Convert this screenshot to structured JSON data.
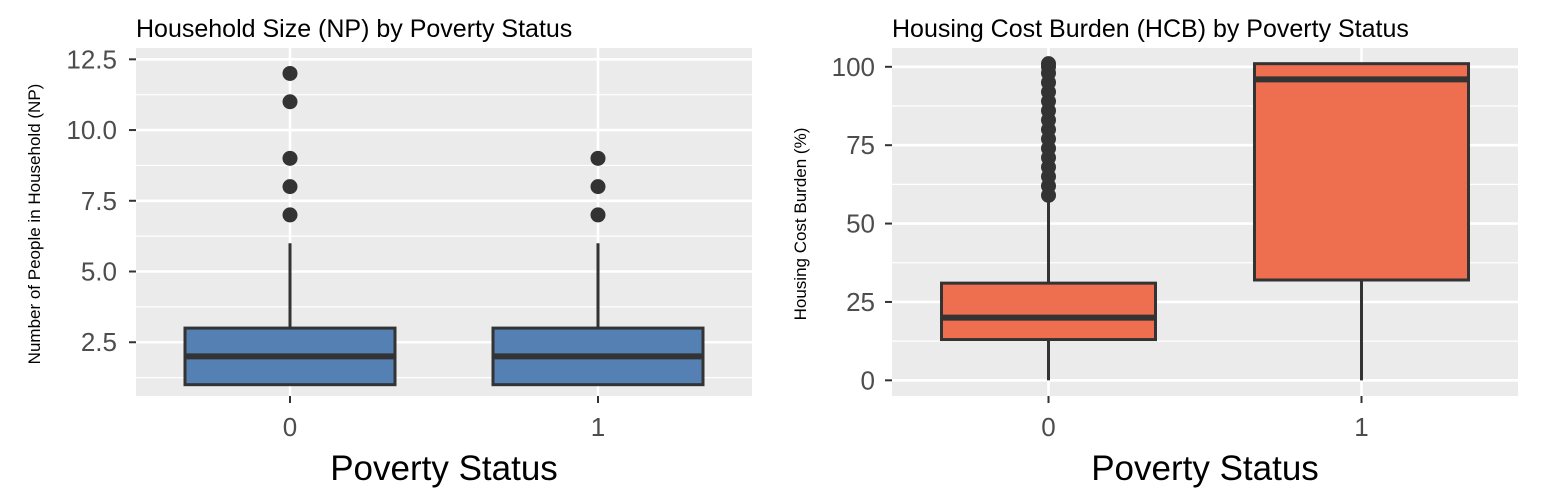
{
  "colors": {
    "panel_bg": "#EBEBEB",
    "grid": "#FFFFFF",
    "outline": "#333333",
    "tick_text": "#4D4D4D",
    "title_text": "#000000",
    "np_fill": "#5480B3",
    "hcb_fill": "#EE6E50"
  },
  "chart_data": [
    {
      "type": "box",
      "title": "Household Size (NP) by Poverty Status",
      "xlabel": "Poverty Status",
      "ylabel": "Number of People in Household (NP)",
      "categories": [
        "0",
        "1"
      ],
      "ylim": [
        0.6,
        12.9
      ],
      "y_ticks": [
        2.5,
        5.0,
        7.5,
        10.0,
        12.5
      ],
      "y_tick_labels": [
        "2.5",
        "5.0",
        "7.5",
        "10.0",
        "12.5"
      ],
      "fill": "#5480B3",
      "boxes": [
        {
          "category": "0",
          "whisker_low": 1,
          "q1": 1,
          "median": 2,
          "q3": 3,
          "whisker_high": 6,
          "outliers": [
            7,
            8,
            9,
            11,
            12
          ]
        },
        {
          "category": "1",
          "whisker_low": 1,
          "q1": 1,
          "median": 2,
          "q3": 3,
          "whisker_high": 6,
          "outliers": [
            7,
            8,
            9
          ]
        }
      ],
      "grid": true
    },
    {
      "type": "box",
      "title": "Housing Cost Burden (HCB) by Poverty Status",
      "xlabel": "Poverty Status",
      "ylabel": "Housing Cost Burden (%)",
      "categories": [
        "0",
        "1"
      ],
      "ylim": [
        -5,
        106
      ],
      "y_ticks": [
        0,
        25,
        50,
        75,
        100
      ],
      "y_tick_labels": [
        "0",
        "25",
        "50",
        "75",
        "100"
      ],
      "fill": "#EE6E50",
      "boxes": [
        {
          "category": "0",
          "whisker_low": 0,
          "q1": 13,
          "median": 20,
          "q3": 31,
          "whisker_high": 58,
          "outliers": [
            59,
            62,
            65,
            68,
            71,
            74,
            77,
            80,
            83,
            86,
            89,
            92,
            95,
            98,
            100,
            101
          ]
        },
        {
          "category": "1",
          "whisker_low": 0,
          "q1": 32,
          "median": 96,
          "q3": 101,
          "whisker_high": 101,
          "outliers": []
        }
      ],
      "grid": true
    }
  ]
}
